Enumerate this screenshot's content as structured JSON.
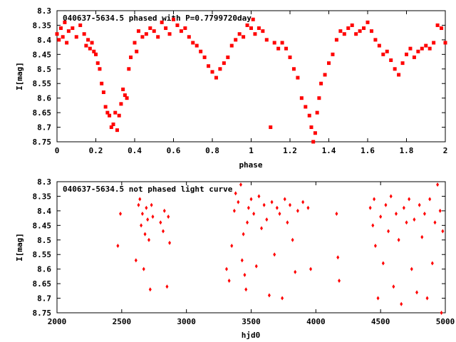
{
  "chart_data": [
    {
      "type": "scatter",
      "title": "040637-5634.5 phased with P=0.7799720day",
      "xlabel": "phase",
      "ylabel": "I[mag]",
      "xlim": [
        0,
        2
      ],
      "ylim": [
        8.3,
        8.75
      ],
      "y_inverted": true,
      "x_ticks": [
        "0",
        "0.2",
        "0.4",
        "0.6",
        "0.8",
        "1",
        "1.2",
        "1.4",
        "1.6",
        "1.8",
        "2"
      ],
      "y_ticks": [
        "8.3",
        "8.35",
        "8.4",
        "8.45",
        "8.5",
        "8.55",
        "8.6",
        "8.65",
        "8.7",
        "8.75"
      ],
      "marker_color": "#ff0000",
      "marker": "filled-square",
      "series": [
        {
          "x": [
            0.0,
            0.01,
            0.02,
            0.03,
            0.04,
            0.05,
            0.06,
            0.08,
            0.1,
            0.12,
            0.14,
            0.15,
            0.16,
            0.17,
            0.18,
            0.19,
            0.2,
            0.21,
            0.22,
            0.23,
            0.24,
            0.25,
            0.26,
            0.27,
            0.28,
            0.29,
            0.3,
            0.31,
            0.32,
            0.33,
            0.34,
            0.35,
            0.36,
            0.37,
            0.38,
            0.4,
            0.41,
            0.42,
            0.44,
            0.46,
            0.48,
            0.5,
            0.52,
            0.54,
            0.56,
            0.58,
            0.6,
            0.62,
            0.64,
            0.66,
            0.68,
            0.7,
            0.72,
            0.74,
            0.76,
            0.78,
            0.8,
            0.82,
            0.84,
            0.86,
            0.88,
            0.9,
            0.92,
            0.94,
            0.96,
            0.98,
            1.0,
            1.01,
            1.02,
            1.04,
            1.06,
            1.08,
            1.1,
            1.12,
            1.14,
            1.16,
            1.18,
            1.2,
            1.22,
            1.24,
            1.26,
            1.28,
            1.3,
            1.31,
            1.32,
            1.33,
            1.34,
            1.35,
            1.36,
            1.38,
            1.4,
            1.42,
            1.44,
            1.46,
            1.48,
            1.5,
            1.52,
            1.54,
            1.56,
            1.58,
            1.6,
            1.62,
            1.64,
            1.66,
            1.68,
            1.7,
            1.72,
            1.74,
            1.76,
            1.78,
            1.8,
            1.82,
            1.84,
            1.86,
            1.88,
            1.9,
            1.92,
            1.94,
            1.96,
            1.98,
            2.0
          ],
          "y": [
            8.38,
            8.4,
            8.36,
            8.39,
            8.34,
            8.41,
            8.37,
            8.36,
            8.39,
            8.35,
            8.38,
            8.42,
            8.4,
            8.43,
            8.41,
            8.44,
            8.45,
            8.48,
            8.5,
            8.55,
            8.58,
            8.63,
            8.65,
            8.66,
            8.7,
            8.69,
            8.65,
            8.71,
            8.66,
            8.62,
            8.57,
            8.59,
            8.6,
            8.5,
            8.46,
            8.41,
            8.44,
            8.37,
            8.39,
            8.38,
            8.36,
            8.37,
            8.39,
            8.34,
            8.36,
            8.38,
            8.33,
            8.35,
            8.37,
            8.36,
            8.39,
            8.41,
            8.42,
            8.44,
            8.46,
            8.49,
            8.51,
            8.53,
            8.5,
            8.48,
            8.46,
            8.42,
            8.4,
            8.38,
            8.39,
            8.35,
            8.36,
            8.33,
            8.38,
            8.36,
            8.37,
            8.4,
            8.7,
            8.41,
            8.43,
            8.41,
            8.43,
            8.46,
            8.5,
            8.53,
            8.6,
            8.63,
            8.66,
            8.7,
            8.75,
            8.72,
            8.65,
            8.6,
            8.55,
            8.52,
            8.48,
            8.45,
            8.4,
            8.37,
            8.38,
            8.36,
            8.35,
            8.38,
            8.37,
            8.36,
            8.34,
            8.37,
            8.4,
            8.42,
            8.45,
            8.44,
            8.47,
            8.5,
            8.52,
            8.48,
            8.45,
            8.43,
            8.46,
            8.44,
            8.43,
            8.42,
            8.43,
            8.41,
            8.35,
            8.36,
            8.41
          ]
        }
      ]
    },
    {
      "type": "scatter",
      "title": "040637-5634.5 not phased light curve",
      "xlabel": "hjd0",
      "ylabel": "I[mag]",
      "xlim": [
        2000,
        5000
      ],
      "ylim": [
        8.3,
        8.75
      ],
      "y_inverted": true,
      "x_ticks": [
        "2000",
        "2500",
        "3000",
        "3500",
        "4000",
        "4500",
        "5000"
      ],
      "y_ticks": [
        "8.3",
        "8.35",
        "8.4",
        "8.45",
        "8.5",
        "8.55",
        "8.6",
        "8.65",
        "8.7",
        "8.75"
      ],
      "marker_color": "#ff0000",
      "marker": "diamond",
      "series": [
        {
          "x": [
            2470,
            2490,
            2610,
            2630,
            2640,
            2650,
            2660,
            2670,
            2680,
            2690,
            2700,
            2710,
            2720,
            2730,
            2740,
            2800,
            2820,
            2830,
            2850,
            2860,
            2870,
            3310,
            3330,
            3350,
            3370,
            3380,
            3400,
            3420,
            3430,
            3440,
            3450,
            3460,
            3470,
            3480,
            3500,
            3520,
            3540,
            3560,
            3580,
            3600,
            3620,
            3640,
            3660,
            3680,
            3700,
            3720,
            3740,
            3760,
            3780,
            3800,
            3820,
            3840,
            3860,
            3900,
            3940,
            3960,
            4160,
            4170,
            4180,
            4420,
            4440,
            4450,
            4460,
            4480,
            4500,
            4520,
            4540,
            4560,
            4580,
            4600,
            4620,
            4640,
            4660,
            4680,
            4700,
            4720,
            4740,
            4760,
            4780,
            4800,
            4820,
            4840,
            4860,
            4880,
            4900,
            4920,
            4940,
            4960,
            4970,
            4980
          ],
          "y": [
            8.52,
            8.41,
            8.57,
            8.38,
            8.36,
            8.45,
            8.41,
            8.6,
            8.48,
            8.39,
            8.43,
            8.5,
            8.67,
            8.38,
            8.42,
            8.44,
            8.47,
            8.4,
            8.66,
            8.42,
            8.51,
            8.6,
            8.64,
            8.52,
            8.4,
            8.34,
            8.37,
            8.31,
            8.57,
            8.48,
            8.62,
            8.67,
            8.44,
            8.39,
            8.36,
            8.41,
            8.59,
            8.35,
            8.46,
            8.38,
            8.43,
            8.69,
            8.37,
            8.55,
            8.39,
            8.41,
            8.7,
            8.36,
            8.44,
            8.38,
            8.5,
            8.61,
            8.4,
            8.37,
            8.39,
            8.6,
            8.41,
            8.56,
            8.64,
            8.39,
            8.45,
            8.36,
            8.52,
            8.7,
            8.42,
            8.58,
            8.38,
            8.47,
            8.35,
            8.66,
            8.41,
            8.5,
            8.72,
            8.39,
            8.44,
            8.36,
            8.6,
            8.43,
            8.68,
            8.38,
            8.49,
            8.41,
            8.7,
            8.36,
            8.58,
            8.44,
            8.31,
            8.4,
            8.75,
            8.47
          ]
        }
      ]
    }
  ]
}
